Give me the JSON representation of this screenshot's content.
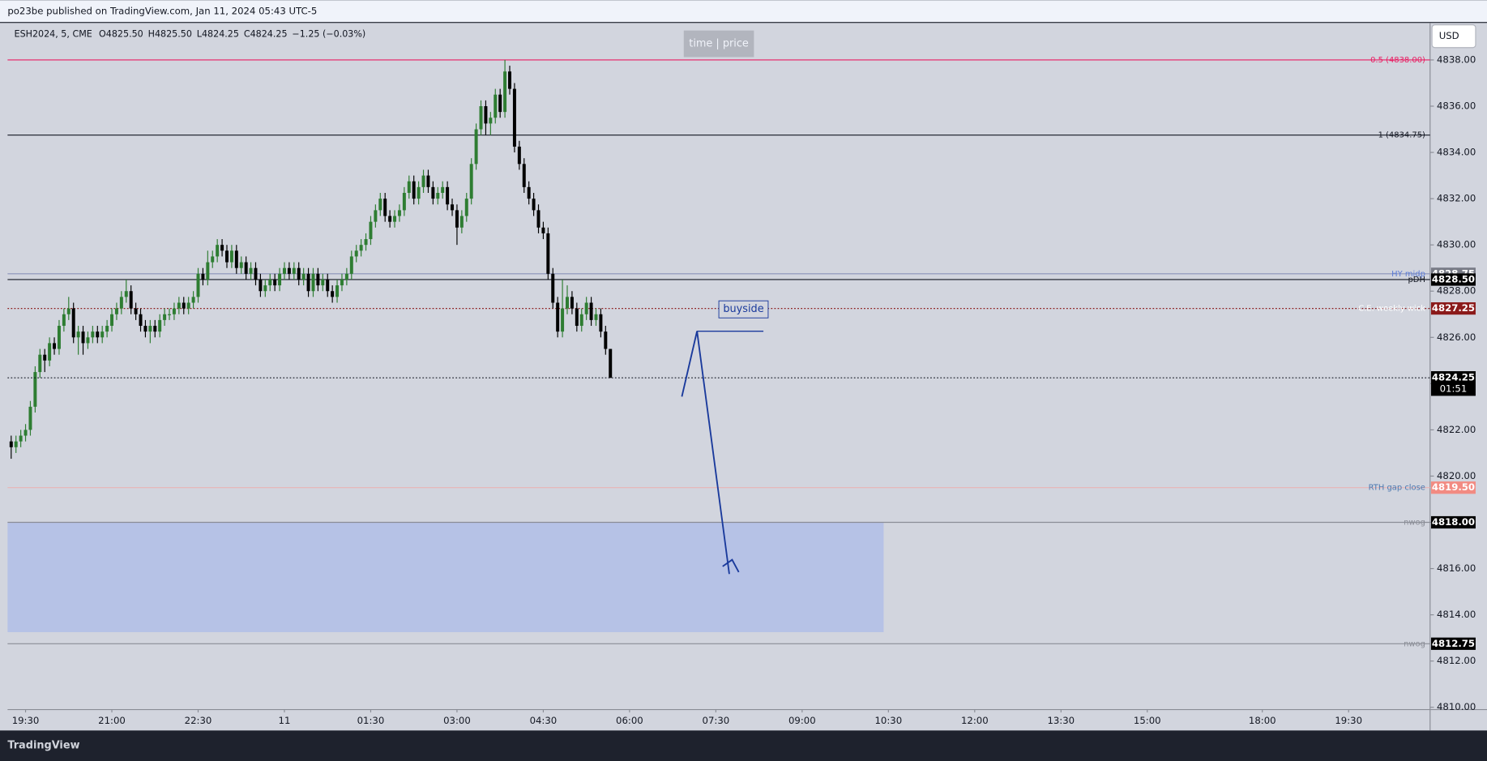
{
  "header": {
    "publisher": "po23be published on TradingView.com, Jan 11, 2024 05:43 UTC-5",
    "symbol": "ESH2024, 5, CME",
    "ohlc": [
      "O4825.50",
      "H4825.50",
      "L4824.25",
      "C4824.25"
    ],
    "change": "−1.25 (−0.03%)"
  },
  "toolbar": {
    "time_price": "time | price",
    "currency": "USD",
    "brand": "TradingView"
  },
  "drawing": {
    "label": "buyside"
  },
  "chart_data": {
    "type": "candlestick",
    "up_color": "#2e7d32",
    "down_color": "#000000",
    "grid": false,
    "xlim": [
      -0.75,
      296
    ],
    "ylim": [
      4809.9,
      4839.6
    ],
    "xticks": [
      {
        "value": 3,
        "label": "19:30"
      },
      {
        "value": 21,
        "label": "21:00"
      },
      {
        "value": 39,
        "label": "22:30"
      },
      {
        "value": 57,
        "label": "11"
      },
      {
        "value": 75,
        "label": "01:30"
      },
      {
        "value": 93,
        "label": "03:00"
      },
      {
        "value": 111,
        "label": "04:30"
      },
      {
        "value": 129,
        "label": "06:00"
      },
      {
        "value": 147,
        "label": "07:30"
      },
      {
        "value": 165,
        "label": "09:00"
      },
      {
        "value": 183,
        "label": "10:30"
      },
      {
        "value": 201,
        "label": "12:00"
      },
      {
        "value": 219,
        "label": "13:30"
      },
      {
        "value": 237,
        "label": "15:00"
      },
      {
        "value": 261,
        "label": "18:00"
      },
      {
        "value": 279,
        "label": "19:30"
      }
    ],
    "yticks": [
      {
        "value": 4810,
        "label": "4810.00"
      },
      {
        "value": 4812,
        "label": "4812.00"
      },
      {
        "value": 4814,
        "label": "4814.00"
      },
      {
        "value": 4816,
        "label": "4816.00"
      },
      {
        "value": 4818,
        "label": "4818.00"
      },
      {
        "value": 4820,
        "label": "4820.00"
      },
      {
        "value": 4822,
        "label": "4822.00"
      },
      {
        "value": 4824,
        "label": "4824.00"
      },
      {
        "value": 4826,
        "label": "4826.00"
      },
      {
        "value": 4828,
        "label": "4828.00"
      },
      {
        "value": 4830,
        "label": "4830.00"
      },
      {
        "value": 4832,
        "label": "4832.00"
      },
      {
        "value": 4834,
        "label": "4834.00"
      },
      {
        "value": 4836,
        "label": "4836.00"
      },
      {
        "value": 4838,
        "label": "4838.00"
      }
    ],
    "candles": [
      [
        4821.5,
        4821.75,
        4820.75,
        4821.25
      ],
      [
        4821.25,
        4821.75,
        4821,
        4821.5
      ],
      [
        4821.5,
        4822,
        4821.25,
        4821.75
      ],
      [
        4821.75,
        4822.25,
        4821.5,
        4822
      ],
      [
        4822,
        4823.25,
        4821.75,
        4823
      ],
      [
        4823,
        4824.75,
        4822.75,
        4824.5
      ],
      [
        4824.5,
        4825.5,
        4824.25,
        4825.25
      ],
      [
        4825.25,
        4825.5,
        4824.5,
        4825
      ],
      [
        4825,
        4826,
        4824.75,
        4825.75
      ],
      [
        4825.75,
        4826,
        4825.25,
        4825.5
      ],
      [
        4825.5,
        4826.75,
        4825.25,
        4826.5
      ],
      [
        4826.5,
        4827.25,
        4826.25,
        4827
      ],
      [
        4827,
        4827.75,
        4826.75,
        4827.25
      ],
      [
        4827.25,
        4827.5,
        4825.75,
        4826
      ],
      [
        4826,
        4826.5,
        4825.25,
        4826.25
      ],
      [
        4826.25,
        4826.5,
        4825.25,
        4825.75
      ],
      [
        4825.75,
        4826.25,
        4825.5,
        4826
      ],
      [
        4826,
        4826.5,
        4825.75,
        4826.25
      ],
      [
        4826.25,
        4826.5,
        4825.75,
        4826
      ],
      [
        4826,
        4826.5,
        4825.75,
        4826.25
      ],
      [
        4826.25,
        4826.75,
        4826,
        4826.5
      ],
      [
        4826.5,
        4827.25,
        4826.25,
        4827
      ],
      [
        4827,
        4827.5,
        4826.75,
        4827.25
      ],
      [
        4827.25,
        4828,
        4827,
        4827.75
      ],
      [
        4827.75,
        4828.5,
        4827.5,
        4828
      ],
      [
        4828,
        4828.25,
        4827,
        4827.25
      ],
      [
        4827.25,
        4827.5,
        4826.75,
        4827
      ],
      [
        4827,
        4827.25,
        4826.25,
        4826.5
      ],
      [
        4826.5,
        4826.75,
        4826,
        4826.25
      ],
      [
        4826.25,
        4826.75,
        4825.75,
        4826.5
      ],
      [
        4826.5,
        4826.75,
        4826,
        4826.25
      ],
      [
        4826.25,
        4827,
        4826,
        4826.75
      ],
      [
        4826.75,
        4827.25,
        4826.5,
        4827
      ],
      [
        4827,
        4827.25,
        4826.75,
        4827
      ],
      [
        4827,
        4827.5,
        4826.75,
        4827.25
      ],
      [
        4827.25,
        4827.75,
        4827,
        4827.5
      ],
      [
        4827.5,
        4827.75,
        4827,
        4827.25
      ],
      [
        4827.25,
        4827.75,
        4827,
        4827.5
      ],
      [
        4827.5,
        4828,
        4827.25,
        4827.75
      ],
      [
        4827.75,
        4829,
        4827.5,
        4828.75
      ],
      [
        4828.75,
        4829,
        4828.25,
        4828.5
      ],
      [
        4828.5,
        4829.75,
        4828.25,
        4829.25
      ],
      [
        4829.25,
        4829.75,
        4829,
        4829.5
      ],
      [
        4829.5,
        4830.25,
        4829.25,
        4830
      ],
      [
        4830,
        4830.25,
        4829.5,
        4829.75
      ],
      [
        4829.75,
        4830,
        4829,
        4829.25
      ],
      [
        4829.25,
        4830,
        4829,
        4829.75
      ],
      [
        4829.75,
        4830,
        4828.75,
        4829
      ],
      [
        4829,
        4829.5,
        4828.75,
        4829.25
      ],
      [
        4829.25,
        4829.5,
        4828.5,
        4828.75
      ],
      [
        4828.75,
        4829.25,
        4828.5,
        4829
      ],
      [
        4829,
        4829.25,
        4828.25,
        4828.5
      ],
      [
        4828.5,
        4828.75,
        4827.75,
        4828
      ],
      [
        4828,
        4828.5,
        4827.75,
        4828.25
      ],
      [
        4828.25,
        4828.75,
        4828,
        4828.5
      ],
      [
        4828.5,
        4828.75,
        4828,
        4828.25
      ],
      [
        4828.25,
        4829,
        4828,
        4828.75
      ],
      [
        4828.75,
        4829.25,
        4828.5,
        4829
      ],
      [
        4829,
        4829.25,
        4828.5,
        4828.75
      ],
      [
        4828.75,
        4829.25,
        4828.5,
        4829
      ],
      [
        4829,
        4829.25,
        4828.25,
        4828.5
      ],
      [
        4828.5,
        4829,
        4828.25,
        4828.75
      ],
      [
        4828.75,
        4829,
        4827.75,
        4828
      ],
      [
        4828,
        4829,
        4827.75,
        4828.75
      ],
      [
        4828.75,
        4829,
        4828,
        4828.25
      ],
      [
        4828.25,
        4828.75,
        4828,
        4828.5
      ],
      [
        4828.5,
        4828.75,
        4827.75,
        4828
      ],
      [
        4828,
        4828.25,
        4827.5,
        4827.75
      ],
      [
        4827.75,
        4828.5,
        4827.5,
        4828.25
      ],
      [
        4828.25,
        4828.75,
        4828,
        4828.5
      ],
      [
        4828.5,
        4829,
        4828.25,
        4828.75
      ],
      [
        4828.75,
        4829.75,
        4828.5,
        4829.5
      ],
      [
        4829.5,
        4830,
        4829.25,
        4829.75
      ],
      [
        4829.75,
        4830.25,
        4829.5,
        4830
      ],
      [
        4830,
        4830.5,
        4829.75,
        4830.25
      ],
      [
        4830.25,
        4831.25,
        4830,
        4831
      ],
      [
        4831,
        4831.75,
        4830.75,
        4831.5
      ],
      [
        4831.5,
        4832.25,
        4831.25,
        4832
      ],
      [
        4832,
        4832.25,
        4831,
        4831.25
      ],
      [
        4831.25,
        4831.5,
        4830.75,
        4831
      ],
      [
        4831,
        4831.5,
        4830.75,
        4831.25
      ],
      [
        4831.25,
        4831.75,
        4831,
        4831.5
      ],
      [
        4831.5,
        4832.5,
        4831.25,
        4832.25
      ],
      [
        4832.25,
        4833,
        4832,
        4832.75
      ],
      [
        4832.75,
        4833,
        4831.75,
        4832
      ],
      [
        4832,
        4832.75,
        4831.75,
        4832.5
      ],
      [
        4832.5,
        4833.25,
        4832.25,
        4833
      ],
      [
        4833,
        4833.25,
        4832.25,
        4832.5
      ],
      [
        4832.5,
        4832.75,
        4831.75,
        4832
      ],
      [
        4832,
        4832.5,
        4831.75,
        4832.25
      ],
      [
        4832.25,
        4832.75,
        4832,
        4832.5
      ],
      [
        4832.5,
        4832.75,
        4831.5,
        4831.75
      ],
      [
        4831.75,
        4832,
        4831.25,
        4831.5
      ],
      [
        4831.5,
        4831.75,
        4830,
        4830.75
      ],
      [
        4830.75,
        4831.5,
        4830.5,
        4831.25
      ],
      [
        4831.25,
        4832.25,
        4831,
        4832
      ],
      [
        4832,
        4833.75,
        4831.75,
        4833.5
      ],
      [
        4833.5,
        4835.25,
        4833.25,
        4835
      ],
      [
        4835,
        4836.25,
        4834.75,
        4836
      ],
      [
        4836,
        4836.25,
        4834.75,
        4835.25
      ],
      [
        4835.25,
        4835.75,
        4834.75,
        4835.5
      ],
      [
        4835.5,
        4836.75,
        4835.25,
        4836.5
      ],
      [
        4836.5,
        4836.75,
        4835.5,
        4835.75
      ],
      [
        4835.75,
        4838,
        4835.5,
        4837.5
      ],
      [
        4837.5,
        4837.75,
        4836.5,
        4836.75
      ],
      [
        4836.75,
        4837,
        4834,
        4834.25
      ],
      [
        4834.25,
        4834.5,
        4833.25,
        4833.5
      ],
      [
        4833.5,
        4833.75,
        4832.25,
        4832.5
      ],
      [
        4832.5,
        4832.75,
        4831.75,
        4832
      ],
      [
        4832,
        4832.25,
        4831.25,
        4831.5
      ],
      [
        4831.5,
        4831.75,
        4830.5,
        4830.75
      ],
      [
        4830.75,
        4831,
        4830.25,
        4830.5
      ],
      [
        4830.5,
        4830.75,
        4828.5,
        4828.75
      ],
      [
        4828.75,
        4829,
        4827.25,
        4827.5
      ],
      [
        4827.5,
        4827.75,
        4826,
        4826.25
      ],
      [
        4826.25,
        4828.5,
        4826,
        4827.25
      ],
      [
        4827.25,
        4828.25,
        4827,
        4827.75
      ],
      [
        4827.75,
        4828,
        4827,
        4827.25
      ],
      [
        4827.25,
        4827.5,
        4826.25,
        4826.5
      ],
      [
        4826.5,
        4827.25,
        4826.25,
        4827
      ],
      [
        4827,
        4827.75,
        4826.75,
        4827.5
      ],
      [
        4827.5,
        4827.75,
        4826.5,
        4826.75
      ],
      [
        4826.75,
        4827.25,
        4826.5,
        4827
      ],
      [
        4827,
        4827.25,
        4826,
        4826.25
      ],
      [
        4826.25,
        4826.5,
        4825.25,
        4825.5
      ],
      [
        4825.5,
        4825.5,
        4824.25,
        4824.25
      ]
    ],
    "zone": {
      "top": 4818,
      "bottom": 4813.25,
      "end": 182,
      "color": "#b6c2e6"
    },
    "levels": {
      "names": [
        "0.5 (4838.00)",
        "1 (4834.75)",
        "HY midp",
        "pDH",
        "C.E. weekly wick",
        "RTH gap close",
        "nwog",
        "nwog"
      ],
      "values": [
        4838,
        4834.75,
        4828.75,
        4828.5,
        4827.25,
        4819.5,
        4818,
        4812.75
      ],
      "value_labels": [
        null,
        null,
        "4828.75",
        "4828.50",
        "4827.25",
        "4819.50",
        "4818.00",
        "4812.75"
      ],
      "colors": [
        "#e91e63",
        "#131722",
        "#8a93b8",
        "#131722",
        "#8b1a1a",
        "#e8b4b4",
        "#8a8d96",
        "#8a8d96"
      ],
      "label_colors": [
        "#e91e63",
        "#131722",
        "#5b7bd5",
        "#131722",
        "#ffffff",
        "#4a78b0",
        "#8a8d96",
        "#8a8d96"
      ],
      "tag_colors": [
        "#e91e63",
        "#131722",
        "#787b86",
        "#000000",
        "#8b1a1a",
        "#f28b82",
        "#000000",
        "#000000"
      ],
      "dashed": [
        false,
        false,
        false,
        false,
        true,
        false,
        false,
        false
      ]
    },
    "last_price": {
      "value": 4824.25,
      "label": "4824.25",
      "countdown": "01:51"
    }
  }
}
